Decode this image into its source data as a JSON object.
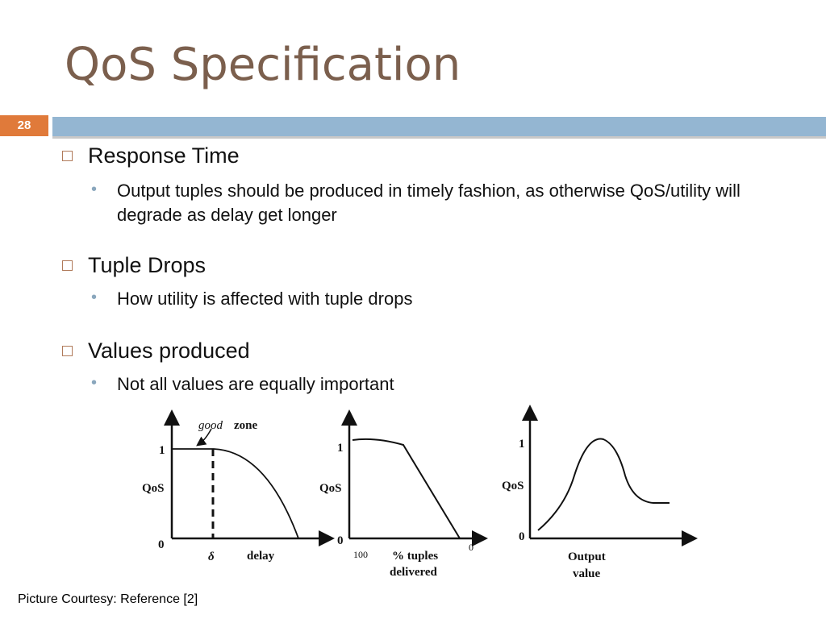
{
  "title": "QoS Specification",
  "slide_number": "28",
  "bullets": [
    {
      "text": "Response Time",
      "sub": [
        "Output tuples should be produced in timely fashion, as otherwise QoS/utility will degrade as delay get longer"
      ]
    },
    {
      "text": "Tuple Drops",
      "sub": [
        "How utility is affected with tuple drops"
      ]
    },
    {
      "text": "Values produced",
      "sub": [
        "Not all values are equally important"
      ]
    }
  ],
  "figures": [
    {
      "y_top": "1",
      "y_label": "QoS",
      "y_bottom": "0",
      "annotation_italic": "good",
      "annotation": "zone",
      "x_mark": "δ",
      "x_label": "delay"
    },
    {
      "y_top": "1",
      "y_label": "QoS",
      "y_bottom": "0",
      "x_left": "100",
      "x_right": "0",
      "x_label_1": "% tuples",
      "x_label_2": "delivered"
    },
    {
      "y_top": "1",
      "y_label": "QoS",
      "y_bottom": "0",
      "x_label_1": "Output",
      "x_label_2": "value"
    }
  ],
  "caption": "Picture Courtesy: Reference [2]"
}
